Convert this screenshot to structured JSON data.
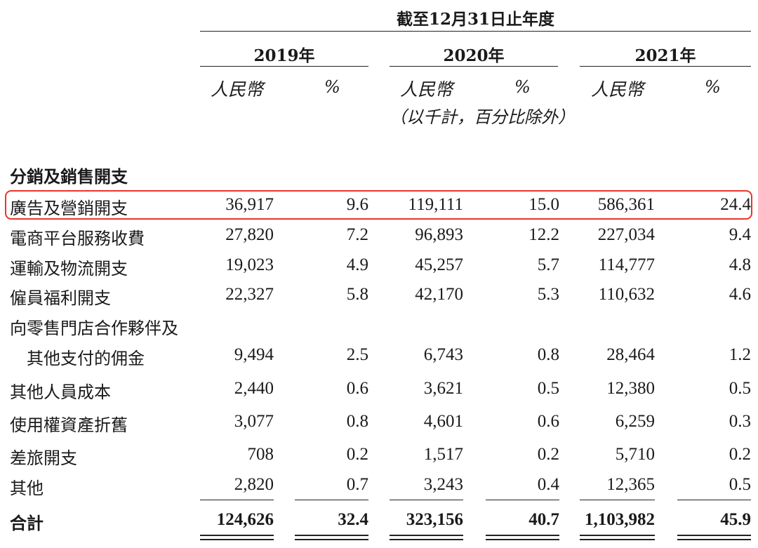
{
  "header": {
    "period": "截至12月31日止年度",
    "years": [
      "2019年",
      "2020年",
      "2021年"
    ],
    "unit_label": "人民幣",
    "pct_label": "%",
    "note": "（以千計，百分比除外）"
  },
  "section_title": "分銷及銷售開支",
  "rows": [
    {
      "label": "廣告及營銷開支",
      "v2019": "36,917",
      "p2019": "9.6",
      "v2020": "119,111",
      "p2020": "15.0",
      "v2021": "586,361",
      "p2021": "24.4",
      "highlighted": true
    },
    {
      "label": "電商平台服務收費",
      "v2019": "27,820",
      "p2019": "7.2",
      "v2020": "96,893",
      "p2020": "12.2",
      "v2021": "227,034",
      "p2021": "9.4"
    },
    {
      "label": "運輸及物流開支",
      "v2019": "19,023",
      "p2019": "4.9",
      "v2020": "45,257",
      "p2020": "5.7",
      "v2021": "114,777",
      "p2021": "4.8"
    },
    {
      "label": "僱員福利開支",
      "v2019": "22,327",
      "p2019": "5.8",
      "v2020": "42,170",
      "p2020": "5.3",
      "v2021": "110,632",
      "p2021": "4.6"
    },
    {
      "label_line1": "向零售門店合作夥伴及",
      "label": "其他支付的佣金",
      "v2019": "9,494",
      "p2019": "2.5",
      "v2020": "6,743",
      "p2020": "0.8",
      "v2021": "28,464",
      "p2021": "1.2"
    },
    {
      "label": "其他人員成本",
      "v2019": "2,440",
      "p2019": "0.6",
      "v2020": "3,621",
      "p2020": "0.5",
      "v2021": "12,380",
      "p2021": "0.5"
    },
    {
      "label": "使用權資產折舊",
      "v2019": "3,077",
      "p2019": "0.8",
      "v2020": "4,601",
      "p2020": "0.6",
      "v2021": "6,259",
      "p2021": "0.3"
    },
    {
      "label": "差旅開支",
      "v2019": "708",
      "p2019": "0.2",
      "v2020": "1,517",
      "p2020": "0.2",
      "v2021": "5,710",
      "p2021": "0.2"
    },
    {
      "label": "其他",
      "v2019": "2,820",
      "p2019": "0.7",
      "v2020": "3,243",
      "p2020": "0.4",
      "v2021": "12,365",
      "p2021": "0.5"
    }
  ],
  "total": {
    "label": "合計",
    "v2019": "124,626",
    "p2019": "32.4",
    "v2020": "323,156",
    "p2020": "40.7",
    "v2021": "1,103,982",
    "p2021": "45.9"
  },
  "colors": {
    "highlight": "#e8352b",
    "text": "#1a1a1a"
  }
}
